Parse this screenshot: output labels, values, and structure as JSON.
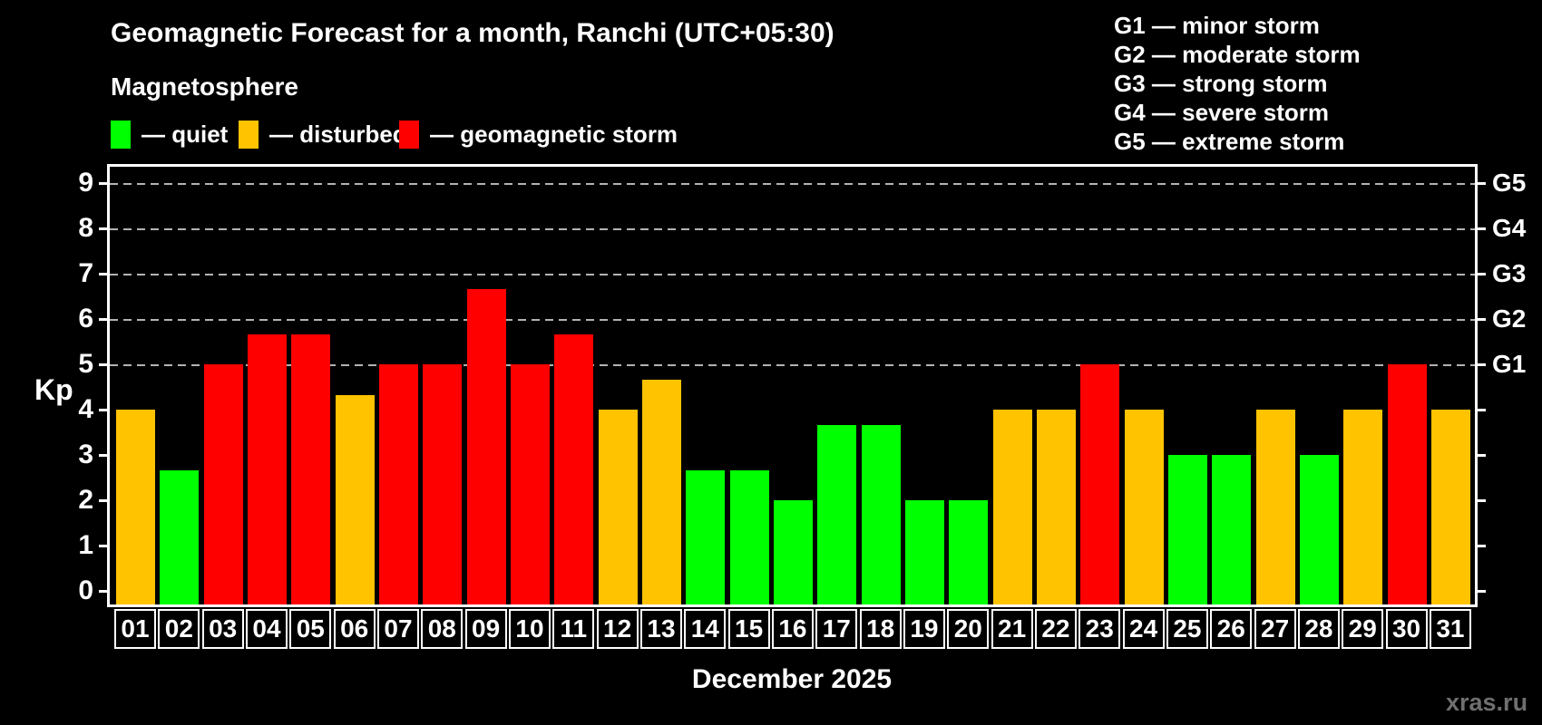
{
  "title": "Geomagnetic Forecast for a month, Ranchi (UTC+05:30)",
  "subtitle": "Magnetosphere",
  "legend": {
    "items": [
      {
        "status": "quiet",
        "label": "— quiet"
      },
      {
        "status": "disturbed",
        "label": "— disturbed"
      },
      {
        "status": "storm",
        "label": "— geomagnetic storm"
      }
    ]
  },
  "g_scale_legend": [
    "G1 — minor storm",
    "G2 — moderate storm",
    "G3 — strong storm",
    "G4 — severe storm",
    "G5 — extreme storm"
  ],
  "colors": {
    "quiet": "#00ff00",
    "disturbed": "#ffc300",
    "storm": "#ff0000",
    "background": "#000000",
    "axis": "#ffffff",
    "grid": "#b3b3b3",
    "watermark": "#6f6f6f"
  },
  "y_axis": {
    "label": "Kp",
    "ticks": [
      "0",
      "1",
      "2",
      "3",
      "4",
      "5",
      "6",
      "7",
      "8",
      "9"
    ],
    "g_labels": [
      {
        "value": 5,
        "label": "G1"
      },
      {
        "value": 6,
        "label": "G2"
      },
      {
        "value": 7,
        "label": "G3"
      },
      {
        "value": 8,
        "label": "G4"
      },
      {
        "value": 9,
        "label": "G5"
      }
    ]
  },
  "x_axis": {
    "title": "December 2025"
  },
  "watermark": "xras.ru",
  "chart_data": {
    "type": "bar",
    "title": "Geomagnetic Forecast for a month, Ranchi (UTC+05:30)",
    "subtitle": "Magnetosphere",
    "xlabel": "December 2025",
    "ylabel": "Kp",
    "ylim": [
      0,
      9.6
    ],
    "grid_levels": [
      5,
      6,
      7,
      8,
      9
    ],
    "thresholds": {
      "disturbed": 4,
      "storm": 5
    },
    "categories": [
      "01",
      "02",
      "03",
      "04",
      "05",
      "06",
      "07",
      "08",
      "09",
      "10",
      "11",
      "12",
      "13",
      "14",
      "15",
      "16",
      "17",
      "18",
      "19",
      "20",
      "21",
      "22",
      "23",
      "24",
      "25",
      "26",
      "27",
      "28",
      "29",
      "30",
      "31"
    ],
    "values": [
      4,
      2.67,
      5,
      5.67,
      5.67,
      4.33,
      5,
      5,
      6.67,
      5,
      5.67,
      4,
      4.67,
      2.67,
      2.67,
      2,
      3.67,
      3.67,
      2,
      2,
      4,
      4,
      5,
      4,
      3,
      3,
      4,
      3,
      4,
      5,
      4
    ],
    "statuses": [
      "disturbed",
      "quiet",
      "storm",
      "storm",
      "storm",
      "disturbed",
      "storm",
      "storm",
      "storm",
      "storm",
      "storm",
      "disturbed",
      "disturbed",
      "quiet",
      "quiet",
      "quiet",
      "quiet",
      "quiet",
      "quiet",
      "quiet",
      "disturbed",
      "disturbed",
      "storm",
      "disturbed",
      "quiet",
      "quiet",
      "disturbed",
      "quiet",
      "disturbed",
      "storm",
      "disturbed"
    ],
    "legend_position": "top-left"
  }
}
